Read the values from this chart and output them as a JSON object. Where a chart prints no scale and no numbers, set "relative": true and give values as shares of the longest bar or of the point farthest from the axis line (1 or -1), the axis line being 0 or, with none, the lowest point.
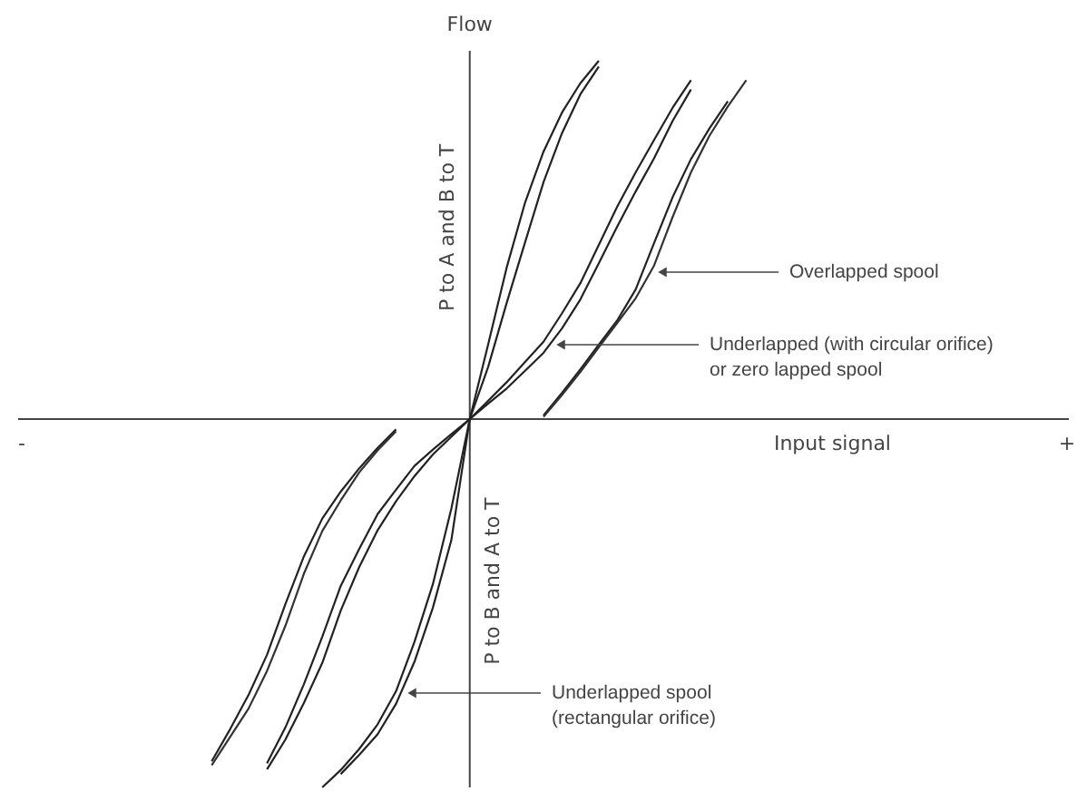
{
  "chart_data": {
    "type": "line",
    "relative": true,
    "xlabel": "Input signal",
    "ylabel": "Flow",
    "marker": "none",
    "line_style": "solid",
    "categories": [
      null,
      null,
      null,
      null,
      null,
      null,
      null,
      null,
      null,
      null,
      null,
      null,
      null,
      null,
      null,
      null,
      null,
      null,
      null,
      null,
      null,
      null,
      null,
      null,
      null,
      null,
      null,
      null,
      null,
      null,
      null,
      null,
      null,
      null,
      null,
      null,
      null,
      null,
      null,
      null,
      null,
      null,
      null,
      null,
      null,
      null,
      null,
      null,
      null,
      null,
      null,
      null,
      null,
      null,
      null,
      null,
      null
    ],
    "series": [
      {
        "color": "#222222",
        "values": [
          null,
          null,
          null,
          null,
          null,
          null,
          null,
          null,
          null,
          null,
          null,
          null,
          null,
          null,
          null,
          null,
          -1.0,
          -0.953,
          -0.896,
          -0.829,
          -0.739,
          -0.605,
          -0.448,
          -0.243,
          0,
          0.203,
          0.411,
          0.588,
          0.726,
          0.832,
          0.912,
          0.973,
          null,
          null,
          null,
          null,
          null,
          null,
          null,
          null,
          null,
          null,
          null,
          null,
          null,
          null,
          null,
          null,
          null,
          null,
          null,
          null,
          null,
          null,
          null,
          null,
          null
        ]
      },
      {
        "color": "#222222",
        "values": [
          null,
          null,
          null,
          null,
          null,
          null,
          null,
          null,
          null,
          null,
          null,
          null,
          null,
          null,
          null,
          null,
          null,
          -0.964,
          -0.912,
          -0.856,
          -0.773,
          -0.659,
          -0.512,
          -0.329,
          0,
          0.142,
          0.315,
          0.48,
          0.643,
          0.776,
          0.882,
          0.957,
          null,
          null,
          null,
          null,
          null,
          null,
          null,
          null,
          null,
          null,
          null,
          null,
          null,
          null,
          null,
          null,
          null,
          null,
          null,
          null,
          null,
          null,
          null,
          null,
          null
        ]
      },
      {
        "color": "#222222",
        "values": [
          null,
          null,
          null,
          null,
          null,
          null,
          null,
          null,
          null,
          null,
          null,
          null,
          null,
          -0.935,
          -0.837,
          -0.72,
          -0.591,
          -0.453,
          -0.353,
          -0.258,
          -0.192,
          -0.127,
          -0.083,
          -0.041,
          0,
          0.05,
          0.1,
          0.155,
          0.21,
          0.287,
          0.369,
          0.473,
          0.577,
          0.67,
          0.758,
          0.845,
          0.92,
          null,
          null,
          null,
          null,
          null,
          null,
          null,
          null,
          null,
          null,
          null,
          null,
          null,
          null,
          null,
          null,
          null,
          null,
          null,
          null
        ]
      },
      {
        "color": "#222222",
        "values": [
          null,
          null,
          null,
          null,
          null,
          null,
          null,
          null,
          null,
          null,
          null,
          null,
          null,
          -0.951,
          -0.87,
          -0.771,
          -0.662,
          -0.52,
          -0.402,
          -0.302,
          -0.223,
          -0.155,
          -0.096,
          -0.048,
          0,
          0.042,
          0.083,
          0.131,
          0.18,
          0.246,
          0.325,
          0.423,
          0.523,
          0.618,
          0.708,
          0.809,
          0.895,
          null,
          null,
          null,
          null,
          null,
          null,
          null,
          null,
          null,
          null,
          null,
          null,
          null,
          null,
          null,
          null,
          null,
          null,
          null,
          null
        ]
      },
      {
        "color": "#222222",
        "values": [
          null,
          null,
          null,
          null,
          null,
          null,
          null,
          null,
          null,
          null,
          -0.929,
          -0.842,
          -0.749,
          -0.64,
          -0.502,
          -0.373,
          -0.27,
          -0.197,
          -0.134,
          -0.078,
          -0.028,
          null,
          null,
          null,
          null,
          null,
          null,
          null,
          0.01,
          0.071,
          0.135,
          0.202,
          0.268,
          0.352,
          0.478,
          0.602,
          0.706,
          0.789,
          0.863,
          null,
          null,
          null,
          null,
          null,
          null,
          null,
          null,
          null,
          null,
          null,
          null,
          null,
          null,
          null,
          null,
          null,
          null
        ]
      },
      {
        "color": "#333333",
        "values": [
          null,
          null,
          null,
          null,
          null,
          null,
          null,
          null,
          null,
          null,
          -0.94,
          -0.863,
          -0.786,
          -0.684,
          -0.561,
          -0.42,
          -0.304,
          -0.221,
          -0.145,
          -0.085,
          -0.033,
          null,
          null,
          null,
          null,
          null,
          null,
          null,
          0.006,
          0.065,
          0.128,
          0.195,
          0.261,
          0.328,
          0.417,
          0.548,
          0.67,
          0.769,
          0.849,
          0.92,
          null,
          null,
          null,
          null,
          null,
          null,
          null,
          null,
          null,
          null,
          null,
          null,
          null,
          null,
          null,
          null,
          null
        ]
      }
    ],
    "annotations": [
      "Overlapped spool",
      "Underlapped (with circular orifice)\nor zero lapped spool",
      "Underlapped spool\n(rectangular orifice)",
      "P to A and B to T",
      "P to B and A to T",
      "-",
      "+"
    ]
  }
}
